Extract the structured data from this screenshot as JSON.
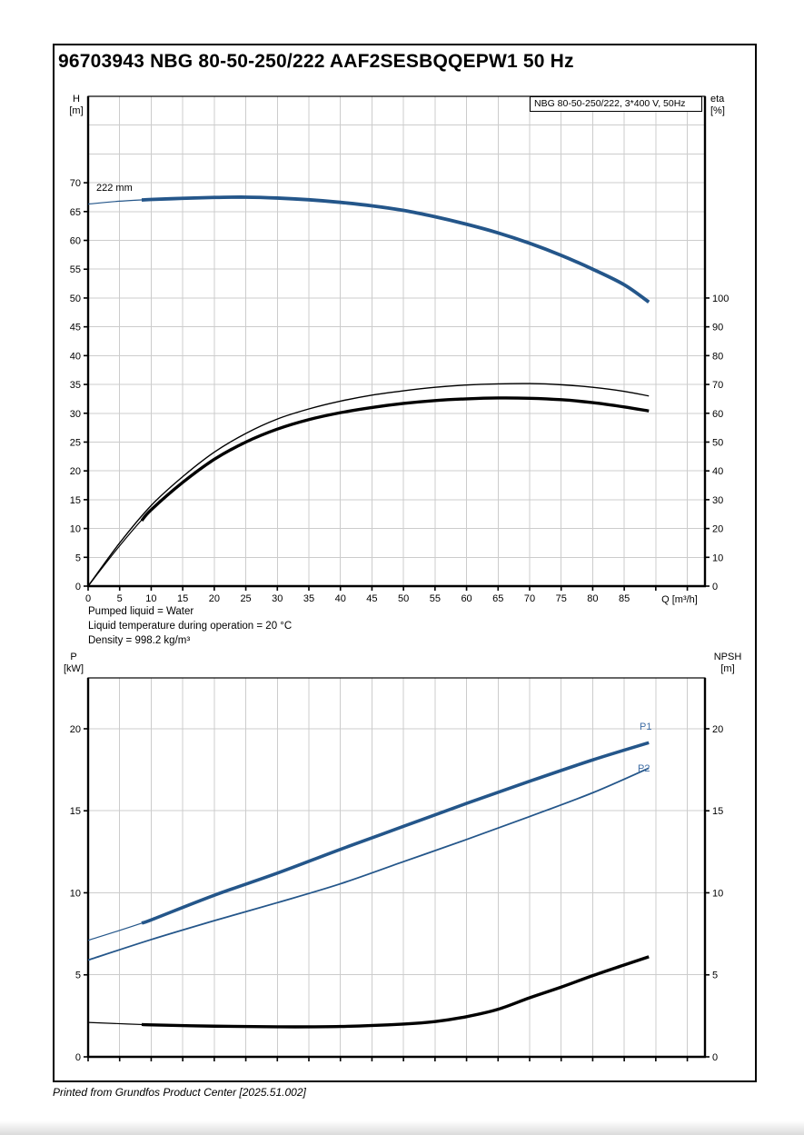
{
  "page": {
    "title": "96703943 NBG 80-50-250/222 AAF2SESBQQEPW1 50 Hz",
    "footer": "Printed from Grundfos Product Center [2025.51.002]"
  },
  "labels": {
    "top_left": "H\n[m]",
    "top_right": "eta\n[%]",
    "bottom_left": "P\n[kW]",
    "bottom_right": "NPSH\n[m]"
  },
  "info_lines": [
    "Pumped liquid = Water",
    "Liquid temperature during operation = 20 °C",
    "Density = 998.2 kg/m³"
  ],
  "colors": {
    "curve_blue": "#24568a",
    "curve_black": "#000000",
    "grid": "#cccccc",
    "label_blue": "#3f6da4",
    "axis": "#000000"
  },
  "chart_data": [
    {
      "type": "line",
      "legend": "NBG 80-50-250/222, 3*400 V, 50Hz",
      "x": {
        "label": "Q [m³/h]",
        "min": 0,
        "max": 97.8,
        "grid_step": 5,
        "tick_step": 5,
        "tick_max": 95,
        "label_tick_max": 85
      },
      "y_left": {
        "label": "H [m]",
        "min": 0,
        "max": 85,
        "grid_step": 5,
        "grid_max": 80,
        "tick_step": 5,
        "tick_max": 70
      },
      "y_right": {
        "label": "eta [%]",
        "min": 0,
        "max": 170,
        "tick_step": 10,
        "tick_max": 100
      },
      "series": [
        {
          "name": "head-curve-222mm",
          "label": "222 mm",
          "axis": "left",
          "color": "#24568a",
          "width": 1.2,
          "thick_width": 3.8,
          "thick_from": 8.5,
          "points": [
            [
              0,
              66.3
            ],
            [
              5,
              66.8
            ],
            [
              10,
              67.1
            ],
            [
              15,
              67.3
            ],
            [
              20,
              67.45
            ],
            [
              25,
              67.5
            ],
            [
              30,
              67.35
            ],
            [
              35,
              67.05
            ],
            [
              40,
              66.6
            ],
            [
              45,
              66.0
            ],
            [
              50,
              65.2
            ],
            [
              55,
              64.1
            ],
            [
              60,
              62.8
            ],
            [
              65,
              61.3
            ],
            [
              70,
              59.5
            ],
            [
              75,
              57.4
            ],
            [
              80,
              55.0
            ],
            [
              85,
              52.3
            ],
            [
              88.9,
              49.3
            ]
          ]
        },
        {
          "name": "eta-pump",
          "axis": "right",
          "color": "#000000",
          "width": 1.4,
          "points": [
            [
              0,
              0
            ],
            [
              5,
              15
            ],
            [
              10,
              28
            ],
            [
              15,
              38
            ],
            [
              20,
              46.5
            ],
            [
              25,
              53
            ],
            [
              30,
              58
            ],
            [
              35,
              61.5
            ],
            [
              40,
              64.2
            ],
            [
              45,
              66.3
            ],
            [
              50,
              67.8
            ],
            [
              55,
              69.0
            ],
            [
              60,
              69.8
            ],
            [
              65,
              70.2
            ],
            [
              70,
              70.3
            ],
            [
              75,
              69.9
            ],
            [
              80,
              69.0
            ],
            [
              85,
              67.6
            ],
            [
              88.9,
              66.0
            ]
          ]
        },
        {
          "name": "eta-pump-motor",
          "axis": "right",
          "color": "#000000",
          "width": 1.2,
          "thick_width": 3.4,
          "thick_from": 8.5,
          "points": [
            [
              0,
              0
            ],
            [
              5,
              14
            ],
            [
              10,
              26.5
            ],
            [
              15,
              36
            ],
            [
              20,
              44
            ],
            [
              25,
              50
            ],
            [
              30,
              54.5
            ],
            [
              35,
              57.8
            ],
            [
              40,
              60.2
            ],
            [
              45,
              62.0
            ],
            [
              50,
              63.4
            ],
            [
              55,
              64.4
            ],
            [
              60,
              65.0
            ],
            [
              65,
              65.3
            ],
            [
              70,
              65.2
            ],
            [
              75,
              64.7
            ],
            [
              80,
              63.7
            ],
            [
              85,
              62.2
            ],
            [
              88.9,
              60.8
            ]
          ]
        }
      ]
    },
    {
      "type": "line",
      "x": {
        "label": "",
        "min": 0,
        "max": 97.8,
        "grid_step": 5,
        "tick_step": 5,
        "tick_max": 95,
        "label_tick_max": -1
      },
      "y_left": {
        "label": "P [kW]",
        "min": 0,
        "max": 23.1,
        "grid_step": 5,
        "grid_max": 20,
        "tick_step": 5,
        "tick_max": 20
      },
      "y_right": {
        "label": "NPSH [m]",
        "min": 0,
        "max": 23.1,
        "tick_step": 5,
        "tick_max": 20
      },
      "series": [
        {
          "name": "p1-power",
          "label": "P1",
          "axis": "left",
          "color": "#24568a",
          "width": 1.2,
          "thick_width": 3.6,
          "thick_from": 8.5,
          "points": [
            [
              0,
              7.1
            ],
            [
              10,
              8.35
            ],
            [
              20,
              9.85
            ],
            [
              30,
              11.2
            ],
            [
              40,
              12.65
            ],
            [
              50,
              14.05
            ],
            [
              60,
              15.45
            ],
            [
              70,
              16.8
            ],
            [
              80,
              18.1
            ],
            [
              88.9,
              19.15
            ]
          ]
        },
        {
          "name": "p2-power",
          "label": "P2",
          "axis": "left",
          "color": "#24568a",
          "width": 1.8,
          "points": [
            [
              0,
              5.9
            ],
            [
              10,
              7.15
            ],
            [
              20,
              8.3
            ],
            [
              30,
              9.4
            ],
            [
              40,
              10.55
            ],
            [
              50,
              11.9
            ],
            [
              60,
              13.25
            ],
            [
              70,
              14.65
            ],
            [
              80,
              16.1
            ],
            [
              88.9,
              17.6
            ]
          ]
        },
        {
          "name": "npsh",
          "axis": "right",
          "color": "#000000",
          "width": 1.2,
          "thick_width": 3.4,
          "thick_from": 8.5,
          "points": [
            [
              0,
              2.1
            ],
            [
              10,
              1.95
            ],
            [
              20,
              1.87
            ],
            [
              30,
              1.83
            ],
            [
              40,
              1.85
            ],
            [
              50,
              2.0
            ],
            [
              55,
              2.15
            ],
            [
              60,
              2.45
            ],
            [
              65,
              2.9
            ],
            [
              70,
              3.6
            ],
            [
              75,
              4.25
            ],
            [
              80,
              4.95
            ],
            [
              85,
              5.6
            ],
            [
              88.9,
              6.1
            ]
          ]
        }
      ]
    }
  ]
}
